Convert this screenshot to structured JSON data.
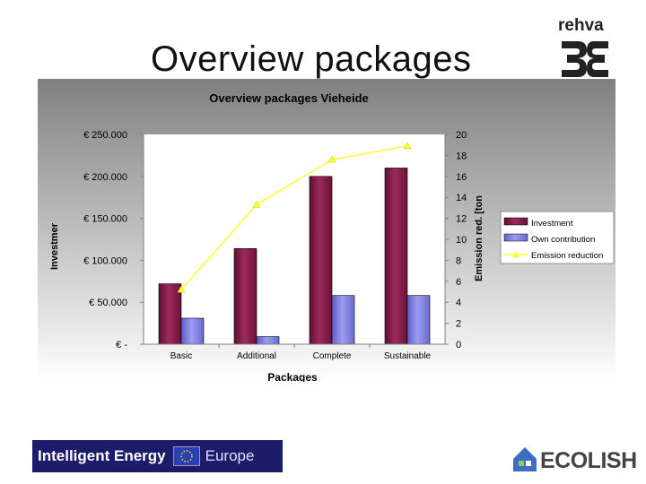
{
  "slide": {
    "title": "Overview packages"
  },
  "logos": {
    "rehva_text": "rehva",
    "intelligent_energy": "Intelligent Energy",
    "europe": "Europe",
    "ecolish": "ECOLISH"
  },
  "colors": {
    "investment": "#8b1e4f",
    "own_contribution": "#7f7fe6",
    "emission_line": "#ffff33"
  },
  "chart_data": {
    "type": "bar",
    "title": "Overview packages Vieheide",
    "xlabel": "Packages",
    "ylabel": "Investmer",
    "y2label": "Emission red. [ton",
    "categories": [
      "Basic",
      "Additional",
      "Complete",
      "Sustainable"
    ],
    "ylim": [
      0,
      250000
    ],
    "y2lim": [
      0,
      20
    ],
    "y_ticks": [
      {
        "value": 0,
        "label": "€ -"
      },
      {
        "value": 50000,
        "label": "€ 50.000"
      },
      {
        "value": 100000,
        "label": "€ 100.000"
      },
      {
        "value": 150000,
        "label": "€ 150.000"
      },
      {
        "value": 200000,
        "label": "€ 200.000"
      },
      {
        "value": 250000,
        "label": "€ 250.000"
      }
    ],
    "y2_ticks": [
      0,
      2,
      4,
      6,
      8,
      10,
      12,
      14,
      16,
      18,
      20
    ],
    "series": [
      {
        "name": "Investment",
        "type": "bar",
        "axis": "left",
        "values": [
          72000,
          114000,
          200000,
          210000
        ]
      },
      {
        "name": "Own contribution",
        "type": "bar",
        "axis": "left",
        "values": [
          31000,
          9000,
          58000,
          58000
        ]
      },
      {
        "name": "Emission reduction",
        "type": "line",
        "axis": "right",
        "values": [
          5.2,
          13.3,
          17.6,
          18.9
        ]
      }
    ],
    "legend_position": "right",
    "grid": false
  }
}
